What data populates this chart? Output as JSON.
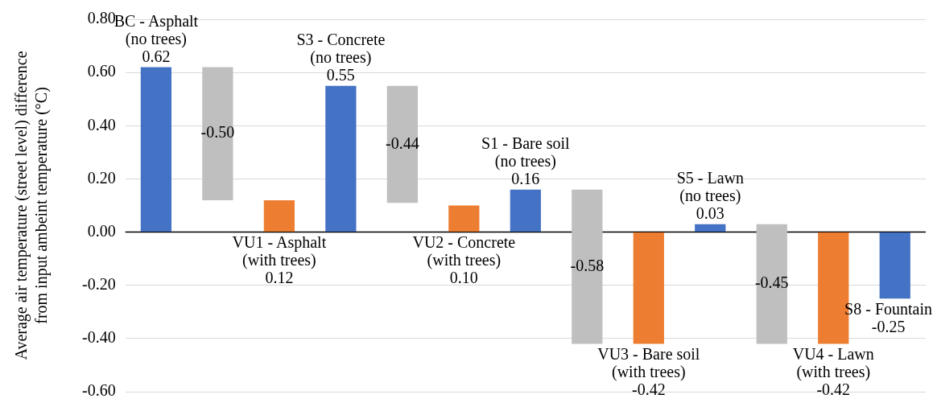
{
  "chart_data": {
    "type": "bar",
    "ylabel": "Average air temperature (street level) difference from input ambeint temperature (°C)",
    "categories": [
      "BC - Asphalt (no trees)",
      null,
      "VU1 - Asphalt (with trees)",
      "S3 - Concrete (no trees)",
      null,
      "VU2 - Concrete (with trees)",
      "S1 - Bare soil (no trees)",
      null,
      "VU3 - Bare soil (with trees)",
      "S5 - Lawn (no trees)",
      null,
      "VU4 - Lawn (with trees)",
      "S8 - Fountain"
    ],
    "values": [
      0.62,
      -0.5,
      0.12,
      0.55,
      -0.44,
      0.1,
      0.16,
      -0.58,
      -0.42,
      0.03,
      -0.45,
      -0.42,
      -0.25
    ],
    "base": [
      0,
      0.62,
      0,
      0,
      0.55,
      0,
      0,
      0.16,
      0,
      0,
      0.03,
      0,
      0
    ],
    "colors": [
      "#4472c4",
      "#bfbfbf",
      "#ed7d31",
      "#4472c4",
      "#bfbfbf",
      "#ed7d31",
      "#4472c4",
      "#bfbfbf",
      "#ed7d31",
      "#4472c4",
      "#bfbfbf",
      "#ed7d31",
      "#4472c4"
    ],
    "value_labels": [
      "0.62",
      "-0.50",
      "0.12",
      "0.55",
      "-0.44",
      "0.10",
      "0.16",
      "-0.58",
      "-0.42",
      "0.03",
      "-0.45",
      "-0.42",
      "-0.25"
    ],
    "ylim": [
      -0.6,
      0.8
    ],
    "yticks": [
      {
        "value": -0.6,
        "label": "-0.60"
      },
      {
        "value": -0.4,
        "label": "-0.40"
      },
      {
        "value": -0.2,
        "label": "-0.20"
      },
      {
        "value": 0,
        "label": "0.00"
      },
      {
        "value": 0.2,
        "label": "0.20"
      },
      {
        "value": 0.4,
        "label": "0.40"
      },
      {
        "value": 0.6,
        "label": "0.60"
      },
      {
        "value": 0.8,
        "label": "0.80"
      }
    ],
    "grid": "y",
    "legend": false,
    "tick_labels": "y"
  }
}
